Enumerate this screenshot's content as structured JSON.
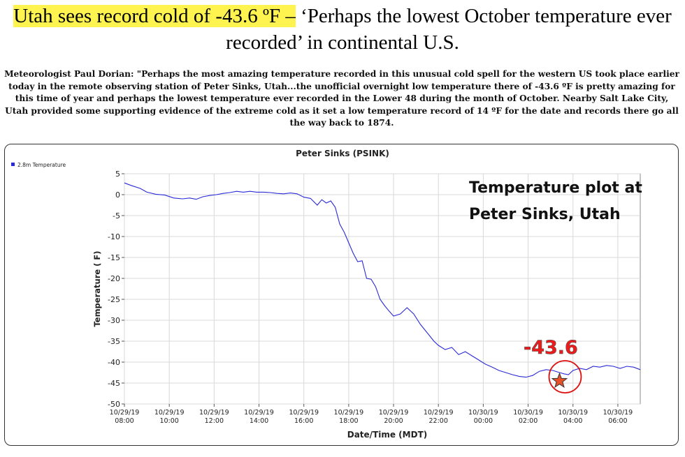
{
  "headline": {
    "highlight": "Utah sees record cold of -43.6 ºF –",
    "rest": " ‘Perhaps the lowest October temperature ever recorded’ in continental U.S."
  },
  "article": {
    "text": "Meteorologist Paul Dorian:  \"Perhaps the most amazing temperature recorded in this unusual cold spell for the western US took place earlier today in the remote observing station of Peter Sinks, Utah...the unofficial overnight low temperature there of -43.6 ºF is pretty amazing for this time of year and perhaps the lowest temperature ever recorded in the Lower 48 during the month of October. Nearby Salt Lake City, Utah provided some supporting evidence of the extreme cold as it set a low temperature record of 14 ºF for the date and records there go all the way back to 1874."
  },
  "chart_data": {
    "type": "line",
    "title": "Peter Sinks (PSINK)",
    "xlabel": "Date/Time (MDT)",
    "ylabel": "Temperature ( F)",
    "ylim": [
      -50,
      5
    ],
    "xlim": [
      8,
      31
    ],
    "yticks": [
      5,
      0,
      -5,
      -10,
      -15,
      -20,
      -25,
      -30,
      -35,
      -40,
      -45,
      -50
    ],
    "xticks": [
      {
        "x": 8,
        "date": "10/29/19",
        "time": "08:00"
      },
      {
        "x": 10,
        "date": "10/29/19",
        "time": "10:00"
      },
      {
        "x": 12,
        "date": "10/29/19",
        "time": "12:00"
      },
      {
        "x": 14,
        "date": "10/29/19",
        "time": "14:00"
      },
      {
        "x": 16,
        "date": "10/29/19",
        "time": "16:00"
      },
      {
        "x": 18,
        "date": "10/29/19",
        "time": "18:00"
      },
      {
        "x": 20,
        "date": "10/29/19",
        "time": "20:00"
      },
      {
        "x": 22,
        "date": "10/29/19",
        "time": "22:00"
      },
      {
        "x": 24,
        "date": "10/30/19",
        "time": "00:00"
      },
      {
        "x": 26,
        "date": "10/30/19",
        "time": "02:00"
      },
      {
        "x": 28,
        "date": "10/30/19",
        "time": "04:00"
      },
      {
        "x": 30,
        "date": "10/30/19",
        "time": "06:00"
      }
    ],
    "grid": true,
    "legend": "top-left",
    "series": [
      {
        "name": "2.8m Temperature",
        "color": "#2a2ad8",
        "x": [
          8.0,
          8.3,
          8.7,
          9.0,
          9.4,
          9.8,
          10.2,
          10.6,
          10.9,
          11.2,
          11.5,
          11.8,
          12.1,
          12.4,
          12.7,
          13.0,
          13.3,
          13.6,
          13.9,
          14.2,
          14.5,
          14.8,
          15.1,
          15.4,
          15.7,
          16.0,
          16.3,
          16.6,
          16.8,
          17.0,
          17.2,
          17.4,
          17.6,
          17.8,
          18.0,
          18.2,
          18.4,
          18.6,
          18.8,
          19.0,
          19.2,
          19.4,
          19.6,
          19.8,
          20.0,
          20.3,
          20.6,
          20.9,
          21.2,
          21.5,
          21.8,
          22.0,
          22.3,
          22.6,
          22.9,
          23.2,
          23.5,
          23.8,
          24.1,
          24.4,
          24.7,
          25.0,
          25.3,
          25.6,
          25.9,
          26.2,
          26.5,
          26.8,
          27.1,
          27.4,
          27.6,
          27.8,
          28.0,
          28.3,
          28.6,
          28.9,
          29.2,
          29.5,
          29.8,
          30.1,
          30.4,
          30.7,
          31.0
        ],
        "y": [
          2.8,
          2.2,
          1.5,
          0.6,
          0.1,
          -0.1,
          -0.8,
          -1.0,
          -0.8,
          -1.1,
          -0.5,
          -0.2,
          0.0,
          0.3,
          0.5,
          0.8,
          0.6,
          0.8,
          0.6,
          0.6,
          0.5,
          0.3,
          0.2,
          0.4,
          0.2,
          -0.6,
          -0.9,
          -2.5,
          -1.2,
          -2.0,
          -1.5,
          -3.0,
          -7.0,
          -9.0,
          -11.5,
          -14.0,
          -16.0,
          -15.8,
          -20.0,
          -20.2,
          -22.0,
          -25.0,
          -26.5,
          -27.8,
          -29.0,
          -28.5,
          -27.0,
          -28.5,
          -31.0,
          -33.0,
          -35.0,
          -36.0,
          -37.0,
          -36.5,
          -38.2,
          -37.5,
          -38.5,
          -39.5,
          -40.5,
          -41.2,
          -42.0,
          -42.5,
          -43.0,
          -43.4,
          -43.6,
          -43.2,
          -42.2,
          -41.8,
          -42.0,
          -42.5,
          -42.8,
          -43.0,
          -42.0,
          -41.5,
          -41.8,
          -41.0,
          -41.2,
          -40.8,
          -41.0,
          -41.5,
          -41.0,
          -41.2,
          -41.8
        ]
      }
    ],
    "annotations": {
      "caption_line1": "Temperature plot at",
      "caption_line2": "Peter Sinks, Utah",
      "min_label": "-43.6",
      "min_point": {
        "x": 27.4,
        "y": -44.5
      }
    }
  }
}
